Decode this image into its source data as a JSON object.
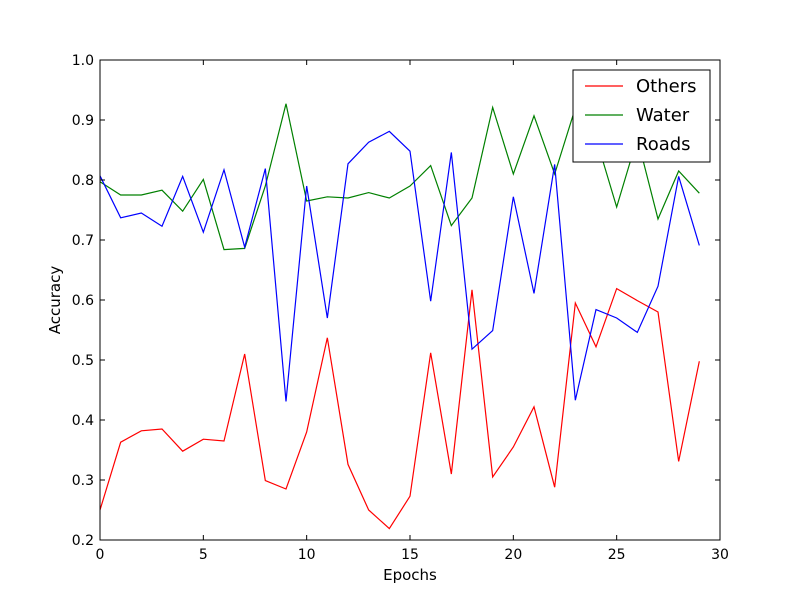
{
  "chart_data": {
    "type": "line",
    "title": "",
    "xlabel": "Epochs",
    "ylabel": "Accuracy",
    "xlim": [
      0,
      30
    ],
    "ylim": [
      0.2,
      1.0
    ],
    "xticks": [
      0,
      5,
      10,
      15,
      20,
      25,
      30
    ],
    "yticks": [
      0.2,
      0.3,
      0.4,
      0.5,
      0.6,
      0.7,
      0.8,
      0.9,
      1.0
    ],
    "xtick_labels": [
      "0",
      "5",
      "10",
      "15",
      "20",
      "25",
      "30"
    ],
    "ytick_labels": [
      "0.2",
      "0.3",
      "0.4",
      "0.5",
      "0.6",
      "0.7",
      "0.8",
      "0.9",
      "1.0"
    ],
    "grid": false,
    "legend_position": "top-right",
    "x": [
      0,
      1,
      2,
      3,
      4,
      5,
      6,
      7,
      8,
      9,
      10,
      11,
      12,
      13,
      14,
      15,
      16,
      17,
      18,
      19,
      20,
      21,
      22,
      23,
      24,
      25,
      26,
      27,
      28,
      29
    ],
    "series": [
      {
        "name": "Others",
        "color": "#ff0000",
        "values": [
          0.25,
          0.363,
          0.382,
          0.385,
          0.348,
          0.368,
          0.365,
          0.51,
          0.299,
          0.285,
          0.38,
          0.537,
          0.326,
          0.25,
          0.219,
          0.273,
          0.512,
          0.31,
          0.617,
          0.305,
          0.355,
          0.422,
          0.288,
          0.595,
          0.522,
          0.619,
          0.599,
          0.58,
          0.331,
          0.498
        ]
      },
      {
        "name": "Water",
        "color": "#008000",
        "values": [
          0.797,
          0.775,
          0.775,
          0.783,
          0.748,
          0.801,
          0.684,
          0.686,
          0.79,
          0.927,
          0.765,
          0.772,
          0.77,
          0.779,
          0.77,
          0.79,
          0.824,
          0.724,
          0.77,
          0.921,
          0.81,
          0.907,
          0.81,
          0.92,
          0.87,
          0.755,
          0.87,
          0.735,
          0.815,
          0.778
        ]
      },
      {
        "name": "Roads",
        "color": "#0000ff",
        "values": [
          0.807,
          0.737,
          0.745,
          0.723,
          0.806,
          0.713,
          0.817,
          0.688,
          0.819,
          0.431,
          0.79,
          0.57,
          0.827,
          0.863,
          0.881,
          0.848,
          0.598,
          0.846,
          0.518,
          0.549,
          0.772,
          0.611,
          0.826,
          0.433,
          0.584,
          0.57,
          0.546,
          0.623,
          0.806,
          0.691
        ]
      }
    ]
  }
}
